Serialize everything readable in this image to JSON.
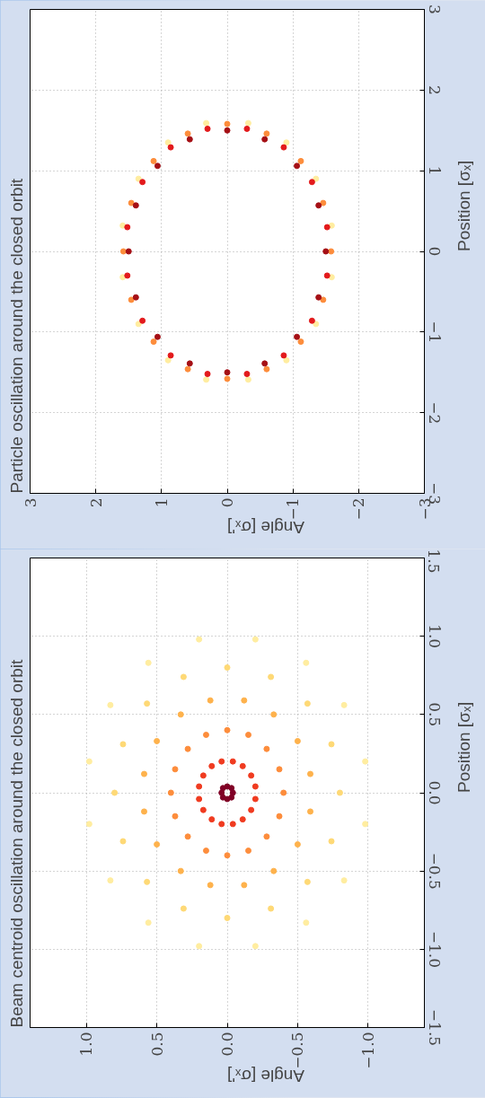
{
  "chart_data": [
    {
      "type": "scatter",
      "title": "Particle oscillation around the closed orbit",
      "xlabel": "Angle [σₓ']",
      "ylabel": "Position [σₓ]",
      "xlim": [
        3,
        -3
      ],
      "ylim": [
        -3,
        3
      ],
      "xticks": [
        {
          "value": -3,
          "label": "−3"
        },
        {
          "value": -2,
          "label": "−2"
        },
        {
          "value": -1,
          "label": "−1"
        },
        0,
        1,
        2,
        3
      ],
      "yticks": [
        {
          "value": -3,
          "label": "−3"
        },
        {
          "value": -2,
          "label": "−2"
        },
        {
          "value": -1,
          "label": "−1"
        },
        0,
        1,
        2,
        3
      ],
      "grid": true,
      "marker": "circle",
      "series": [
        {
          "color": "#ffeda0",
          "x": [
            1.59,
            1.35,
            0.9,
            0.32,
            -0.32,
            -0.9,
            -1.35,
            -1.59,
            -1.59,
            -1.35,
            -0.9,
            -0.32,
            0.32,
            0.9,
            1.35,
            1.59
          ],
          "values": [
            0.32,
            0.9,
            1.35,
            1.59,
            1.59,
            1.35,
            0.9,
            0.32,
            -0.32,
            -0.9,
            -1.35,
            -1.59,
            -1.59,
            -1.35,
            -0.9,
            -0.32
          ]
        },
        {
          "color": "#fd8d3c",
          "x": [
            1.58,
            1.46,
            1.12,
            0.6,
            0,
            -0.6,
            -1.12,
            -1.46,
            -1.58,
            -1.46,
            -1.12,
            -0.6,
            0,
            0.6,
            1.12,
            1.46
          ],
          "values": [
            0,
            0.6,
            1.12,
            1.46,
            1.58,
            1.46,
            1.12,
            0.6,
            0,
            -0.6,
            -1.12,
            -1.46,
            -1.58,
            -1.46,
            -1.12,
            -0.6
          ]
        },
        {
          "color": "#e31a1c",
          "x": [
            1.52,
            1.29,
            0.86,
            0.3,
            -0.3,
            -0.86,
            -1.29,
            -1.52,
            -1.52,
            -1.29,
            -0.86,
            -0.3,
            0.3,
            0.86,
            1.29,
            1.52
          ],
          "values": [
            0.3,
            0.86,
            1.29,
            1.52,
            1.52,
            1.29,
            0.86,
            0.3,
            -0.3,
            -0.86,
            -1.29,
            -1.52,
            -1.52,
            -1.29,
            -0.86,
            -0.3
          ]
        },
        {
          "color": "#a50f15",
          "x": [
            1.5,
            1.39,
            1.06,
            0.57,
            0,
            -0.57,
            -1.06,
            -1.39,
            -1.5,
            -1.39,
            -1.06,
            -0.57,
            0,
            0.57,
            1.06,
            1.39
          ],
          "values": [
            0,
            0.57,
            1.06,
            1.39,
            1.5,
            1.39,
            1.06,
            0.57,
            0,
            -0.57,
            -1.06,
            -1.39,
            -1.5,
            -1.39,
            -1.06,
            -0.57
          ]
        }
      ]
    },
    {
      "type": "scatter",
      "title": "Beam centroid oscillation around the closed orbit",
      "xlabel": "Angle [σₓ']",
      "ylabel": "Position [σₓ]",
      "xlim": [
        1.4,
        -1.4
      ],
      "ylim": [
        -1.5,
        1.5
      ],
      "xticks": [
        {
          "value": -1.0,
          "label": "−1.0"
        },
        {
          "value": -0.5,
          "label": "−0.5"
        },
        {
          "value": 0,
          "label": "0.0"
        },
        {
          "value": 0.5,
          "label": "0.5"
        },
        {
          "value": 1.0,
          "label": "1.0"
        }
      ],
      "yticks": [
        {
          "value": -1.5,
          "label": "−1.5"
        },
        {
          "value": -1.0,
          "label": "−1.0"
        },
        {
          "value": -0.5,
          "label": "−0.5"
        },
        {
          "value": 0,
          "label": "0.0"
        },
        {
          "value": 0.5,
          "label": "0.5"
        },
        {
          "value": 1.0,
          "label": "1.0"
        },
        {
          "value": 1.5,
          "label": "1.5"
        }
      ],
      "grid": true,
      "marker": "circle",
      "series": [
        {
          "color": "#ffeda0",
          "x": [
            0.98,
            0.83,
            0.56,
            0.2,
            -0.2,
            -0.56,
            -0.83,
            -0.98,
            -0.98,
            -0.83,
            -0.56,
            -0.2,
            0.2,
            0.56,
            0.83,
            0.98
          ],
          "values": [
            0.2,
            0.56,
            0.83,
            0.98,
            0.98,
            0.83,
            0.56,
            0.2,
            -0.2,
            -0.56,
            -0.83,
            -0.98,
            -0.98,
            -0.83,
            -0.56,
            -0.2
          ]
        },
        {
          "color": "#fed976",
          "x": [
            0.8,
            0.74,
            0.57,
            0.31,
            0,
            -0.31,
            -0.57,
            -0.74,
            -0.8,
            -0.74,
            -0.57,
            -0.31,
            0,
            0.31,
            0.57,
            0.74
          ],
          "values": [
            0,
            0.31,
            0.57,
            0.74,
            0.8,
            0.74,
            0.57,
            0.31,
            0,
            -0.31,
            -0.57,
            -0.74,
            -0.8,
            -0.74,
            -0.57,
            -0.31
          ]
        },
        {
          "color": "#feb24c",
          "x": [
            0.59,
            0.5,
            0.33,
            0.12,
            -0.12,
            -0.33,
            -0.5,
            -0.59,
            -0.59,
            -0.5,
            -0.33,
            -0.12,
            0.12,
            0.33,
            0.5,
            0.59
          ],
          "values": [
            0.12,
            0.33,
            0.5,
            0.59,
            0.59,
            0.5,
            0.33,
            0.12,
            -0.12,
            -0.33,
            -0.5,
            -0.59,
            -0.59,
            -0.5,
            -0.33,
            -0.12
          ]
        },
        {
          "color": "#fd8d3c",
          "x": [
            0.4,
            0.37,
            0.28,
            0.15,
            0,
            -0.15,
            -0.28,
            -0.37,
            -0.4,
            -0.37,
            -0.28,
            -0.15,
            0,
            0.15,
            0.28,
            0.37
          ],
          "values": [
            0,
            0.15,
            0.28,
            0.37,
            0.4,
            0.37,
            0.28,
            0.15,
            0,
            -0.15,
            -0.28,
            -0.37,
            -0.4,
            -0.37,
            -0.28,
            -0.15
          ]
        },
        {
          "color": "#f03b20",
          "x": [
            0.2,
            0.17,
            0.11,
            0.04,
            -0.04,
            -0.11,
            -0.17,
            -0.2,
            -0.2,
            -0.17,
            -0.11,
            -0.04,
            0.04,
            0.11,
            0.17,
            0.2
          ],
          "values": [
            0.04,
            0.11,
            0.17,
            0.2,
            0.2,
            0.17,
            0.11,
            0.04,
            -0.04,
            -0.11,
            -0.17,
            -0.2,
            -0.2,
            -0.17,
            -0.11,
            -0.04
          ]
        },
        {
          "color": "#800026",
          "x": [
            0.04,
            0.03,
            0,
            -0.03,
            -0.04,
            -0.03,
            0,
            0.03
          ],
          "values": [
            0,
            0.03,
            0.04,
            0.03,
            0,
            -0.03,
            -0.04,
            -0.03
          ]
        }
      ]
    }
  ]
}
